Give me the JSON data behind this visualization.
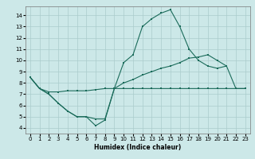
{
  "title": "",
  "xlabel": "Humidex (Indice chaleur)",
  "bg_color": "#cce8e8",
  "grid_color": "#aacccc",
  "line_color": "#1a6b5a",
  "xlim": [
    -0.5,
    23.5
  ],
  "ylim": [
    3.5,
    14.8
  ],
  "xticks": [
    0,
    1,
    2,
    3,
    4,
    5,
    6,
    7,
    8,
    9,
    10,
    11,
    12,
    13,
    14,
    15,
    16,
    17,
    18,
    19,
    20,
    21,
    22,
    23
  ],
  "yticks": [
    4,
    5,
    6,
    7,
    8,
    9,
    10,
    11,
    12,
    13,
    14
  ],
  "line1_y": [
    8.5,
    7.5,
    7.0,
    6.2,
    5.5,
    5.0,
    5.0,
    4.2,
    4.7,
    7.5,
    9.8,
    10.5,
    13.0,
    13.7,
    14.2,
    14.5,
    13.0,
    11.0,
    10.0,
    9.5,
    9.3,
    9.5,
    null,
    null
  ],
  "line2_y": [
    8.5,
    7.5,
    7.2,
    7.2,
    7.3,
    7.3,
    7.3,
    7.4,
    7.5,
    7.5,
    8.0,
    8.3,
    8.7,
    9.0,
    9.3,
    9.5,
    9.8,
    10.2,
    10.3,
    10.5,
    10.0,
    9.5,
    7.5,
    7.5
  ],
  "line3_y": [
    8.5,
    7.5,
    7.0,
    6.2,
    5.5,
    5.0,
    5.0,
    4.8,
    4.8,
    7.5,
    7.5,
    7.5,
    7.5,
    7.5,
    7.5,
    7.5,
    7.5,
    7.5,
    7.5,
    7.5,
    7.5,
    7.5,
    7.5,
    7.5
  ],
  "marker_size": 2.0,
  "line_width": 0.8,
  "tick_fontsize": 5.0,
  "xlabel_fontsize": 5.5
}
